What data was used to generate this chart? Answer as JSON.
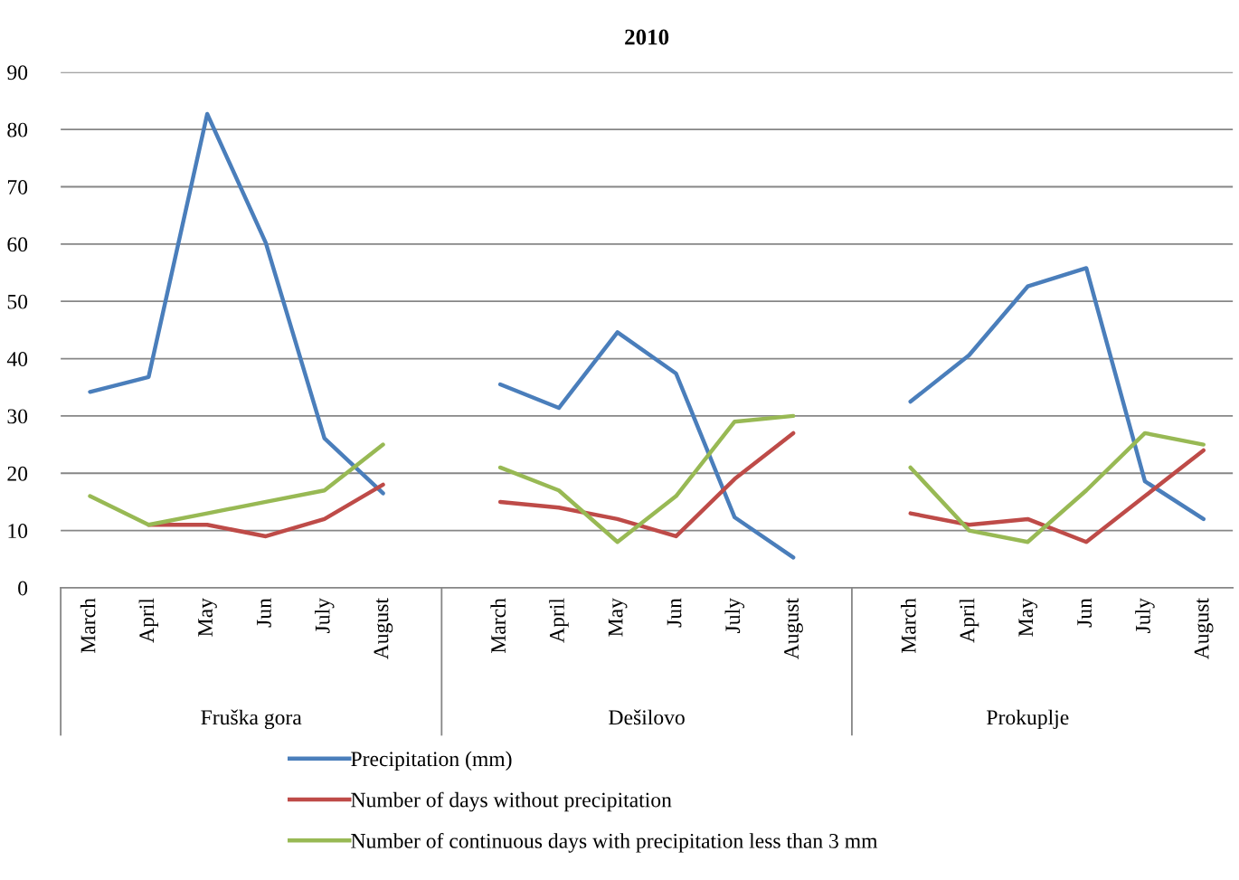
{
  "chart_data": {
    "type": "line",
    "title": "2010",
    "categories": [
      "March",
      "April",
      "May",
      "Jun",
      "July",
      "August",
      null,
      "March",
      "April",
      "May",
      "Jun",
      "July",
      "August",
      null,
      "March",
      "April",
      "May",
      "Jun",
      "July",
      "August"
    ],
    "annotations": [
      "Fruška gora",
      "Dešilovo",
      "Prokuplje"
    ],
    "series": [
      {
        "name": "Precipitation (mm)",
        "color": "#4a7ebb",
        "values": [
          34.2,
          36.8,
          82.7,
          60.2,
          26.1,
          16.5,
          null,
          35.5,
          31.4,
          44.6,
          37.4,
          12.3,
          5.3,
          null,
          32.5,
          40.6,
          52.6,
          55.8,
          18.6,
          12
        ]
      },
      {
        "name": "Number of days without precipitation",
        "color": "#be4b48",
        "values": [
          null,
          11,
          11,
          9,
          12,
          18,
          null,
          15,
          14,
          12,
          9,
          19,
          27,
          null,
          13,
          11,
          12,
          8,
          16,
          24
        ]
      },
      {
        "name": "Number of continuous days with precipitation less than 3 mm",
        "color": "#98b954",
        "values": [
          16,
          11,
          13,
          15,
          17,
          25,
          null,
          21,
          17,
          8,
          16,
          29,
          30,
          null,
          21,
          10,
          8,
          17,
          27,
          25
        ]
      }
    ],
    "ylim": [
      0,
      90
    ],
    "yticks": [
      0,
      10,
      20,
      30,
      40,
      50,
      60,
      70,
      80,
      90
    ],
    "grid": "y",
    "legend": "bottom",
    "marker": "none",
    "line_style": "solid"
  }
}
